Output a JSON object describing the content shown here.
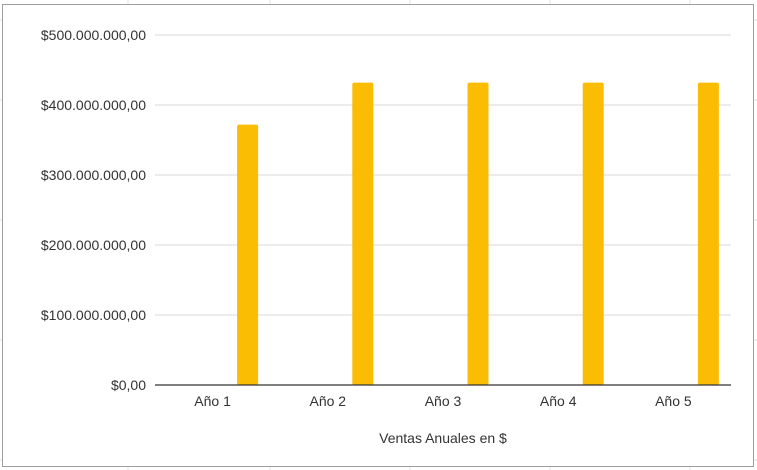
{
  "chart_data": {
    "type": "bar",
    "categories": [
      "Año 1",
      "Año 2",
      "Año 3",
      "Año 4",
      "Año 5"
    ],
    "values": [
      372000000,
      432000000,
      432000000,
      432000000,
      432000000
    ],
    "xlabel": "Ventas Anuales en $",
    "ylabel": "",
    "ylim": [
      0,
      500000000
    ],
    "yticks": [
      0,
      100000000,
      200000000,
      300000000,
      400000000,
      500000000
    ],
    "ytick_labels": [
      "$0,00",
      "$100.000.000,00",
      "$200.000.000,00",
      "$300.000.000,00",
      "$400.000.000,00",
      "$500.000.000,00"
    ],
    "grid": true,
    "legend": "none",
    "colors": {
      "bar": "#fbbc04",
      "grid": "#d9d9d9",
      "axis": "#333333",
      "text": "#333333",
      "frame": "#9e9e9e",
      "sheet_grid": "#e2e2e2"
    }
  }
}
